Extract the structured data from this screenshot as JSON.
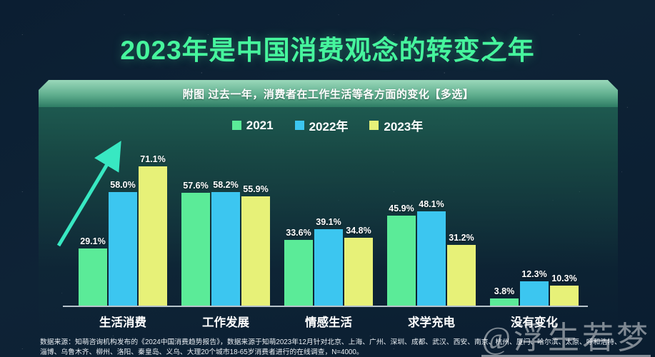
{
  "title": "2023年是中国消费观念的转变之年",
  "banner": {
    "label": "附图 过去一年，消费者在工作生活等各方面的变化【多选】"
  },
  "chart_data": {
    "type": "bar",
    "title": "过去一年，消费者在工作生活等各方面的变化【多选】",
    "categories": [
      "生活消费",
      "工作发展",
      "情感生活",
      "求学充电",
      "没有变化"
    ],
    "series": [
      {
        "name": "2021",
        "color": "#5beb98",
        "values": [
          29.1,
          57.6,
          33.6,
          45.9,
          3.8
        ]
      },
      {
        "name": "2022年",
        "color": "#3cc6f0",
        "values": [
          58.0,
          58.2,
          39.1,
          48.1,
          12.3
        ]
      },
      {
        "name": "2023年",
        "color": "#e7f178",
        "values": [
          71.1,
          55.9,
          34.8,
          31.2,
          10.3
        ]
      }
    ],
    "value_suffix": "%",
    "ylim": [
      0,
      75
    ],
    "grid": false,
    "legend_position": "top",
    "annotations": [
      "teal upward trend arrow beside 生活消费 group"
    ]
  },
  "footer": {
    "line1": "数据来源：知萌咨询机构发布的《2024中国消费趋势报告》，数据来源于知萌2023年12月针对北京、上海、广州、深圳、成都、武汉、西安、南京、杭州、厦门、哈尔滨、太原、呼和浩特、",
    "line2": "淄博、乌鲁木齐、柳州、洛阳、秦皇岛、义乌、大理20个城市18-65岁消费者进行的在线调查，N=4000。"
  },
  "watermark": "@浮生若梦",
  "colors": {
    "background": "#0d2134",
    "title_green": "#46f59d",
    "banner_green": "#5fae8e",
    "arrow_teal": "#38e8c2",
    "axis": "#d6e0e8"
  }
}
